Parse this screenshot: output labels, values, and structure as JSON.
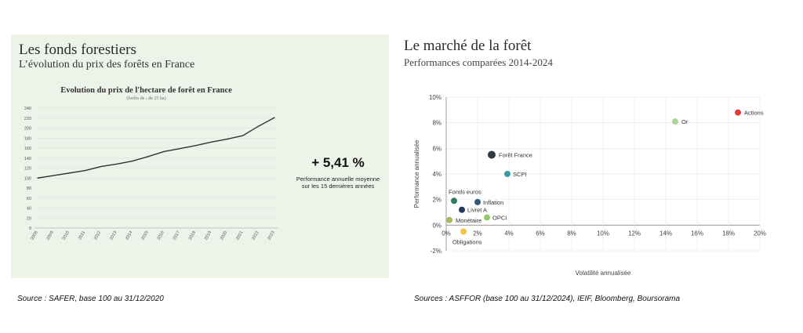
{
  "left_panel": {
    "title": "Les fonds forestiers",
    "subtitle": "L’évolution du prix des forêts en France",
    "highlight_value": "+ 5,41 %",
    "highlight_label_line1": "Performance annuelle moyenne",
    "highlight_label_line2": "sur les 15 dernières années",
    "source": "Source : SAFER, base 100 au 31/12/2020",
    "background_color": "#eef3ea"
  },
  "right_panel": {
    "title": "Le marché de la forêt",
    "subtitle": "Performances comparées 2014-2024",
    "source": "Sources : ASFFOR (base 100 au 31/12/2024), IEIF, Bloomberg, Boursorama"
  },
  "chart_data": [
    {
      "type": "line",
      "title": "Evolution du prix de l'hectare de forêt en France",
      "subtitle": "(forêts de › de 25 ha)",
      "xlabel": "",
      "ylabel": "",
      "x": [
        "2008",
        "2009",
        "2010",
        "2011",
        "2012",
        "2013",
        "2014",
        "2015",
        "2016",
        "2017",
        "2018",
        "2019",
        "2020",
        "2021",
        "2022",
        "2023"
      ],
      "series": [
        {
          "values": [
            100,
            105,
            110,
            115,
            123,
            128,
            134,
            143,
            153,
            159,
            165,
            172,
            178,
            185,
            204,
            221
          ],
          "color": "#333333"
        }
      ],
      "ylim": [
        0,
        240
      ],
      "yticks": [
        0,
        20,
        40,
        60,
        80,
        100,
        120,
        140,
        160,
        180,
        200,
        220,
        240
      ],
      "grid": true
    },
    {
      "type": "scatter",
      "xlabel": "Volatilité annualisée",
      "ylabel": "Performance annualisée",
      "xlim": [
        0,
        20
      ],
      "ylim": [
        -2,
        10
      ],
      "xticks": [
        "0%",
        "2%",
        "4%",
        "6%",
        "8%",
        "10%",
        "12%",
        "14%",
        "16%",
        "18%",
        "20%"
      ],
      "yticks": [
        "-2%",
        "0%",
        "2%",
        "4%",
        "6%",
        "8%",
        "10%"
      ],
      "grid": true,
      "points": [
        {
          "label": "Actions",
          "x": 18.6,
          "y": 8.8,
          "color": "#e53935",
          "size": 4
        },
        {
          "label": "Or",
          "x": 14.6,
          "y": 8.1,
          "color": "#a8d59a",
          "size": 4
        },
        {
          "label": "Forêt France",
          "x": 2.9,
          "y": 5.5,
          "color": "#2f3a3f",
          "size": 5
        },
        {
          "label": "SCPI",
          "x": 3.9,
          "y": 4.0,
          "color": "#3a9aa3",
          "size": 4
        },
        {
          "label": "Fonds euros",
          "x": 0.5,
          "y": 1.9,
          "color": "#2f7a62",
          "size": 4
        },
        {
          "label": "Inflation",
          "x": 2.0,
          "y": 1.8,
          "color": "#2d5a78",
          "size": 4
        },
        {
          "label": "Livret A",
          "x": 1.0,
          "y": 1.2,
          "color": "#1b3c5c",
          "size": 4
        },
        {
          "label": "OPCI",
          "x": 2.6,
          "y": 0.6,
          "color": "#8fcb6a",
          "size": 4
        },
        {
          "label": "Monétaire",
          "x": 0.2,
          "y": 0.4,
          "color": "#a9b85a",
          "size": 4
        },
        {
          "label": "Obligations",
          "x": 1.1,
          "y": -0.5,
          "color": "#f5c242",
          "size": 4
        }
      ]
    }
  ]
}
